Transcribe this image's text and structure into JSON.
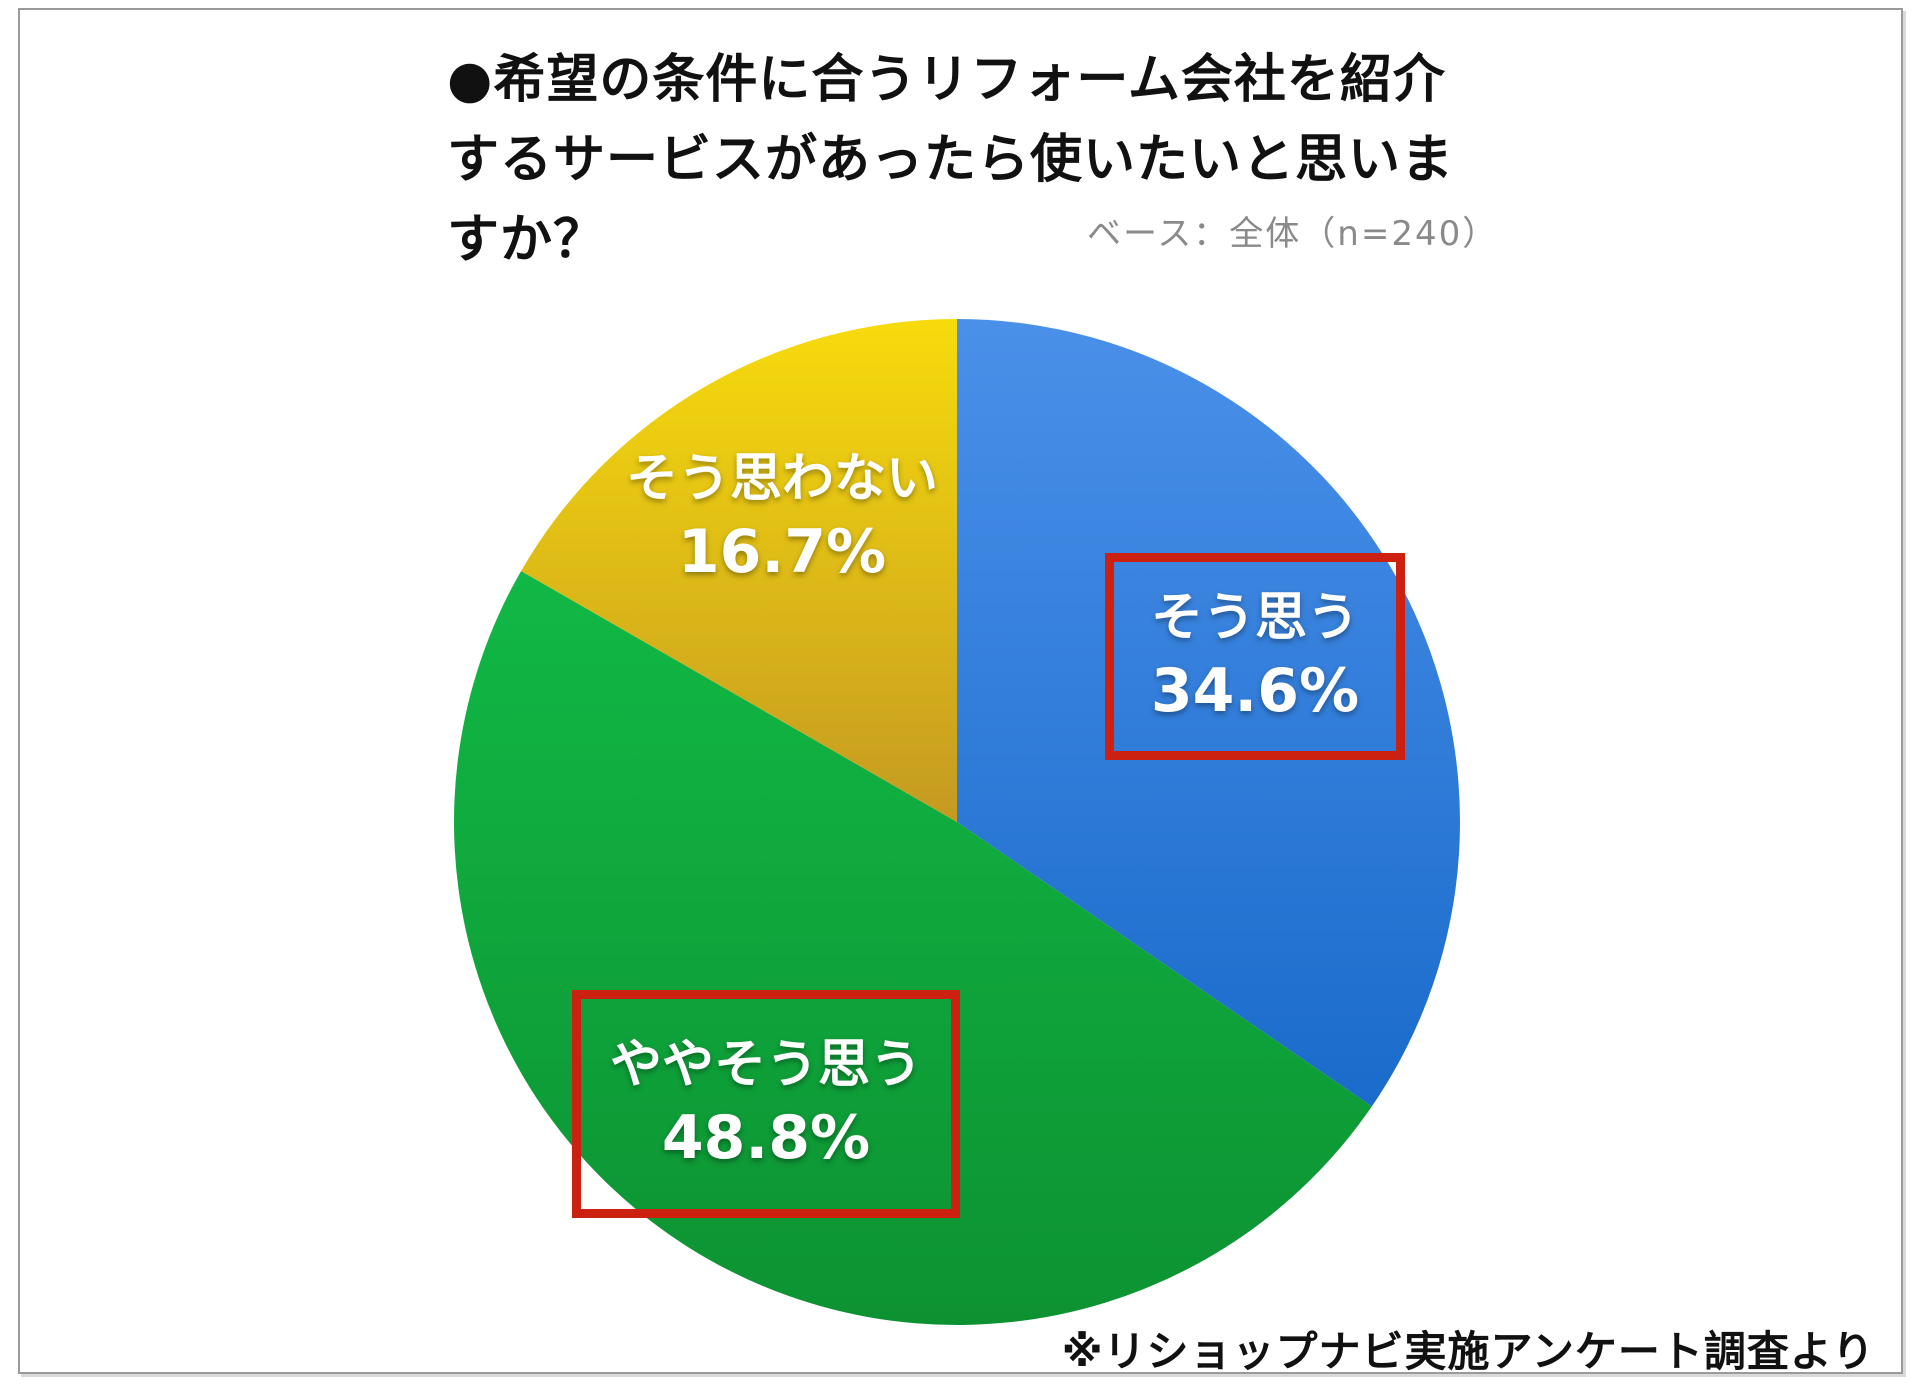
{
  "frame": {
    "title_lines": [
      "●希望の条件に合うリフォーム会社を紹介",
      "するサービスがあったら使いたいと思いま",
      "すか？"
    ]
  },
  "chart_data": {
    "type": "pie",
    "title": "希望の条件に合うリフォーム会社を紹介するサービスがあったら使いたいと思いますか？",
    "base_note": "ベース：全体（n=240）",
    "n": 240,
    "start_angle": "12 o'clock",
    "direction": "clockwise",
    "legend_position": "labels-on-slices",
    "slices": [
      {
        "label": "そう思う",
        "value": 34.6,
        "display": "34.6%",
        "color_top": "#4a90e9",
        "color_bottom": "#1a6bcb",
        "highlighted": true
      },
      {
        "label": "ややそう思う",
        "value": 48.8,
        "display": "48.8%",
        "color_top": "#11b845",
        "color_bottom": "#0d9232",
        "highlighted": true
      },
      {
        "label": "そう思わない",
        "value": 16.7,
        "display": "16.7%",
        "color_top": "#f7db0c",
        "color_bottom": "#c49a22",
        "highlighted": false
      }
    ],
    "highlight_color": "#cc2110",
    "source": "※リショップナビ実施アンケート調査より"
  }
}
